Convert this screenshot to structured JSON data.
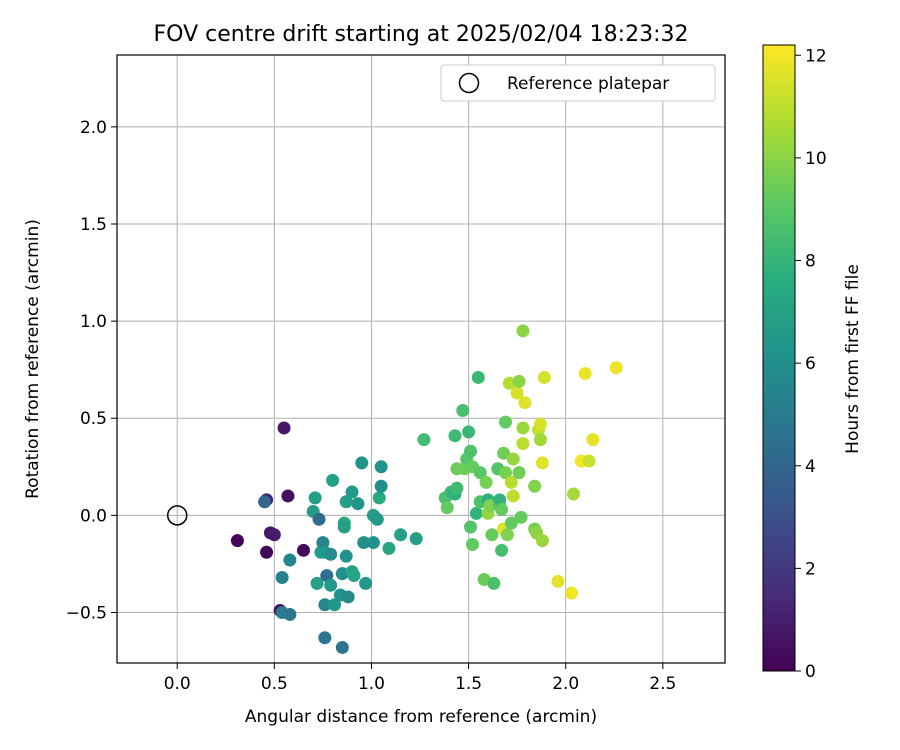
{
  "chart_data": {
    "type": "scatter",
    "title": "FOV centre drift starting at 2025/02/04 18:23:32",
    "xlabel": "Angular distance from reference (arcmin)",
    "ylabel": "Rotation from reference (arcmin)",
    "xlim": [
      -0.31,
      2.82
    ],
    "ylim": [
      -0.76,
      2.37
    ],
    "xticks": [
      0.0,
      0.5,
      1.0,
      1.5,
      2.0,
      2.5
    ],
    "xtick_labels": [
      "0.0",
      "0.5",
      "1.0",
      "1.5",
      "2.0",
      "2.5"
    ],
    "yticks": [
      -0.5,
      0.0,
      0.5,
      1.0,
      1.5,
      2.0
    ],
    "ytick_labels": [
      "−0.5",
      "0.0",
      "0.5",
      "1.0",
      "1.5",
      "2.0"
    ],
    "grid": true,
    "legend": {
      "placement": "top-right",
      "entries": [
        "Reference platepar"
      ]
    },
    "reference_point": {
      "x": 0.0,
      "y": 0.0,
      "label": "Reference platepar"
    },
    "colorbar": {
      "label": "Hours from first FF file",
      "min": 0,
      "max": 12.2,
      "ticks": [
        0,
        2,
        4,
        6,
        8,
        10,
        12
      ],
      "tick_labels": [
        "0",
        "2",
        "4",
        "6",
        "8",
        "10",
        "12"
      ],
      "colormap": "viridis"
    },
    "points": [
      {
        "x": 0.31,
        "y": -0.13,
        "h": 0.1
      },
      {
        "x": 0.46,
        "y": -0.19,
        "h": 0.2
      },
      {
        "x": 0.48,
        "y": -0.09,
        "h": 0.8
      },
      {
        "x": 0.5,
        "y": -0.1,
        "h": 0.9
      },
      {
        "x": 0.46,
        "y": 0.08,
        "h": 1.0
      },
      {
        "x": 0.55,
        "y": 0.45,
        "h": 0.7
      },
      {
        "x": 0.57,
        "y": 0.1,
        "h": 0.5
      },
      {
        "x": 0.65,
        "y": -0.18,
        "h": 0.3
      },
      {
        "x": 0.53,
        "y": -0.49,
        "h": 0.4
      },
      {
        "x": 0.45,
        "y": 0.07,
        "h": 4.0
      },
      {
        "x": 0.54,
        "y": -0.5,
        "h": 5.0
      },
      {
        "x": 0.54,
        "y": -0.32,
        "h": 5.3
      },
      {
        "x": 0.58,
        "y": -0.23,
        "h": 5.5
      },
      {
        "x": 0.58,
        "y": -0.51,
        "h": 4.8
      },
      {
        "x": 0.7,
        "y": 0.02,
        "h": 6.7
      },
      {
        "x": 0.71,
        "y": 0.09,
        "h": 6.8
      },
      {
        "x": 0.73,
        "y": -0.02,
        "h": 4.3
      },
      {
        "x": 0.72,
        "y": -0.35,
        "h": 6.9
      },
      {
        "x": 0.74,
        "y": -0.19,
        "h": 6.6
      },
      {
        "x": 0.75,
        "y": -0.14,
        "h": 5.4
      },
      {
        "x": 0.76,
        "y": -0.19,
        "h": 6.5
      },
      {
        "x": 0.77,
        "y": -0.31,
        "h": 4.5
      },
      {
        "x": 0.79,
        "y": -0.2,
        "h": 5.9
      },
      {
        "x": 0.76,
        "y": -0.46,
        "h": 5.6
      },
      {
        "x": 0.76,
        "y": -0.63,
        "h": 4.7
      },
      {
        "x": 0.81,
        "y": -0.46,
        "h": 6.4
      },
      {
        "x": 0.79,
        "y": -0.36,
        "h": 6.6
      },
      {
        "x": 0.8,
        "y": 0.18,
        "h": 7.0
      },
      {
        "x": 0.84,
        "y": -0.41,
        "h": 6.2
      },
      {
        "x": 0.85,
        "y": -0.3,
        "h": 6.0
      },
      {
        "x": 0.86,
        "y": -0.04,
        "h": 7.2
      },
      {
        "x": 0.86,
        "y": -0.06,
        "h": 6.9
      },
      {
        "x": 0.87,
        "y": 0.07,
        "h": 6.8
      },
      {
        "x": 0.87,
        "y": -0.21,
        "h": 6.1
      },
      {
        "x": 0.88,
        "y": -0.42,
        "h": 5.8
      },
      {
        "x": 0.85,
        "y": -0.68,
        "h": 4.6
      },
      {
        "x": 0.9,
        "y": 0.12,
        "h": 6.5
      },
      {
        "x": 0.9,
        "y": -0.29,
        "h": 7.0
      },
      {
        "x": 0.91,
        "y": -0.31,
        "h": 7.2
      },
      {
        "x": 0.93,
        "y": 0.06,
        "h": 6.3
      },
      {
        "x": 0.95,
        "y": 0.27,
        "h": 6.3
      },
      {
        "x": 0.96,
        "y": -0.14,
        "h": 6.0
      },
      {
        "x": 0.97,
        "y": -0.35,
        "h": 6.4
      },
      {
        "x": 1.01,
        "y": -0.14,
        "h": 6.2
      },
      {
        "x": 1.01,
        "y": 0.0,
        "h": 6.7
      },
      {
        "x": 1.03,
        "y": -0.02,
        "h": 6.5
      },
      {
        "x": 1.04,
        "y": 0.09,
        "h": 7.4
      },
      {
        "x": 1.05,
        "y": 0.15,
        "h": 6.0
      },
      {
        "x": 1.05,
        "y": 0.25,
        "h": 6.2
      },
      {
        "x": 1.09,
        "y": -0.17,
        "h": 7.1
      },
      {
        "x": 1.15,
        "y": -0.1,
        "h": 6.9
      },
      {
        "x": 1.23,
        "y": -0.12,
        "h": 6.8
      },
      {
        "x": 1.27,
        "y": 0.39,
        "h": 8.4
      },
      {
        "x": 1.38,
        "y": 0.09,
        "h": 8.6
      },
      {
        "x": 1.39,
        "y": 0.04,
        "h": 9.2
      },
      {
        "x": 1.41,
        "y": 0.12,
        "h": 8.2
      },
      {
        "x": 1.43,
        "y": 0.41,
        "h": 8.3
      },
      {
        "x": 1.43,
        "y": 0.11,
        "h": 7.8
      },
      {
        "x": 1.44,
        "y": 0.14,
        "h": 8.3
      },
      {
        "x": 1.44,
        "y": 0.24,
        "h": 9.4
      },
      {
        "x": 1.47,
        "y": 0.54,
        "h": 8.6
      },
      {
        "x": 1.48,
        "y": 0.24,
        "h": 9.5
      },
      {
        "x": 1.49,
        "y": 0.29,
        "h": 9.0
      },
      {
        "x": 1.5,
        "y": 0.43,
        "h": 8.1
      },
      {
        "x": 1.51,
        "y": 0.33,
        "h": 8.7
      },
      {
        "x": 1.51,
        "y": -0.06,
        "h": 8.8
      },
      {
        "x": 1.52,
        "y": 0.25,
        "h": 9.3
      },
      {
        "x": 1.52,
        "y": -0.15,
        "h": 9.2
      },
      {
        "x": 1.54,
        "y": 0.01,
        "h": 7.9
      },
      {
        "x": 1.55,
        "y": 0.71,
        "h": 8.2
      },
      {
        "x": 1.56,
        "y": 0.07,
        "h": 8.7
      },
      {
        "x": 1.56,
        "y": 0.22,
        "h": 9.0
      },
      {
        "x": 1.58,
        "y": -0.33,
        "h": 9.4
      },
      {
        "x": 1.59,
        "y": 0.17,
        "h": 9.6
      },
      {
        "x": 1.6,
        "y": 0.01,
        "h": 10.2
      },
      {
        "x": 1.6,
        "y": 0.08,
        "h": 7.8
      },
      {
        "x": 1.61,
        "y": 0.05,
        "h": 9.8
      },
      {
        "x": 1.62,
        "y": -0.1,
        "h": 9.3
      },
      {
        "x": 1.63,
        "y": -0.35,
        "h": 8.6
      },
      {
        "x": 1.65,
        "y": 0.24,
        "h": 8.8
      },
      {
        "x": 1.66,
        "y": 0.05,
        "h": 9.1
      },
      {
        "x": 1.66,
        "y": 0.08,
        "h": 7.9
      },
      {
        "x": 1.67,
        "y": -0.18,
        "h": 8.5
      },
      {
        "x": 1.67,
        "y": 0.03,
        "h": 9.2
      },
      {
        "x": 1.68,
        "y": -0.07,
        "h": 11.6
      },
      {
        "x": 1.68,
        "y": 0.32,
        "h": 9.5
      },
      {
        "x": 1.69,
        "y": 0.48,
        "h": 9.2
      },
      {
        "x": 1.69,
        "y": 0.22,
        "h": 9.6
      },
      {
        "x": 1.7,
        "y": -0.1,
        "h": 9.8
      },
      {
        "x": 1.71,
        "y": 0.68,
        "h": 10.8
      },
      {
        "x": 1.72,
        "y": 0.17,
        "h": 10.9
      },
      {
        "x": 1.72,
        "y": -0.04,
        "h": 9.2
      },
      {
        "x": 1.73,
        "y": 0.1,
        "h": 11.0
      },
      {
        "x": 1.73,
        "y": 0.29,
        "h": 10.2
      },
      {
        "x": 1.75,
        "y": 0.63,
        "h": 11.4
      },
      {
        "x": 1.76,
        "y": 0.69,
        "h": 10.0
      },
      {
        "x": 1.76,
        "y": 0.22,
        "h": 9.5
      },
      {
        "x": 1.77,
        "y": -0.01,
        "h": 9.3
      },
      {
        "x": 1.78,
        "y": 0.45,
        "h": 10.3
      },
      {
        "x": 1.78,
        "y": 0.95,
        "h": 10.0
      },
      {
        "x": 1.78,
        "y": 0.37,
        "h": 10.9
      },
      {
        "x": 1.79,
        "y": 0.58,
        "h": 11.6
      },
      {
        "x": 1.84,
        "y": 0.15,
        "h": 9.8
      },
      {
        "x": 1.84,
        "y": -0.07,
        "h": 9.6
      },
      {
        "x": 1.85,
        "y": -0.09,
        "h": 10.1
      },
      {
        "x": 1.86,
        "y": 0.44,
        "h": 11.1
      },
      {
        "x": 1.87,
        "y": 0.39,
        "h": 10.4
      },
      {
        "x": 1.87,
        "y": 0.47,
        "h": 11.5
      },
      {
        "x": 1.88,
        "y": 0.27,
        "h": 11.6
      },
      {
        "x": 1.88,
        "y": -0.13,
        "h": 10.3
      },
      {
        "x": 1.89,
        "y": 0.71,
        "h": 11.4
      },
      {
        "x": 1.96,
        "y": -0.34,
        "h": 11.7
      },
      {
        "x": 2.03,
        "y": -0.4,
        "h": 11.9
      },
      {
        "x": 2.04,
        "y": 0.11,
        "h": 10.5
      },
      {
        "x": 2.08,
        "y": 0.28,
        "h": 12.0
      },
      {
        "x": 2.1,
        "y": 0.73,
        "h": 11.8
      },
      {
        "x": 2.12,
        "y": 0.28,
        "h": 11.2
      },
      {
        "x": 2.14,
        "y": 0.39,
        "h": 11.7
      },
      {
        "x": 2.26,
        "y": 0.76,
        "h": 11.9
      }
    ]
  }
}
